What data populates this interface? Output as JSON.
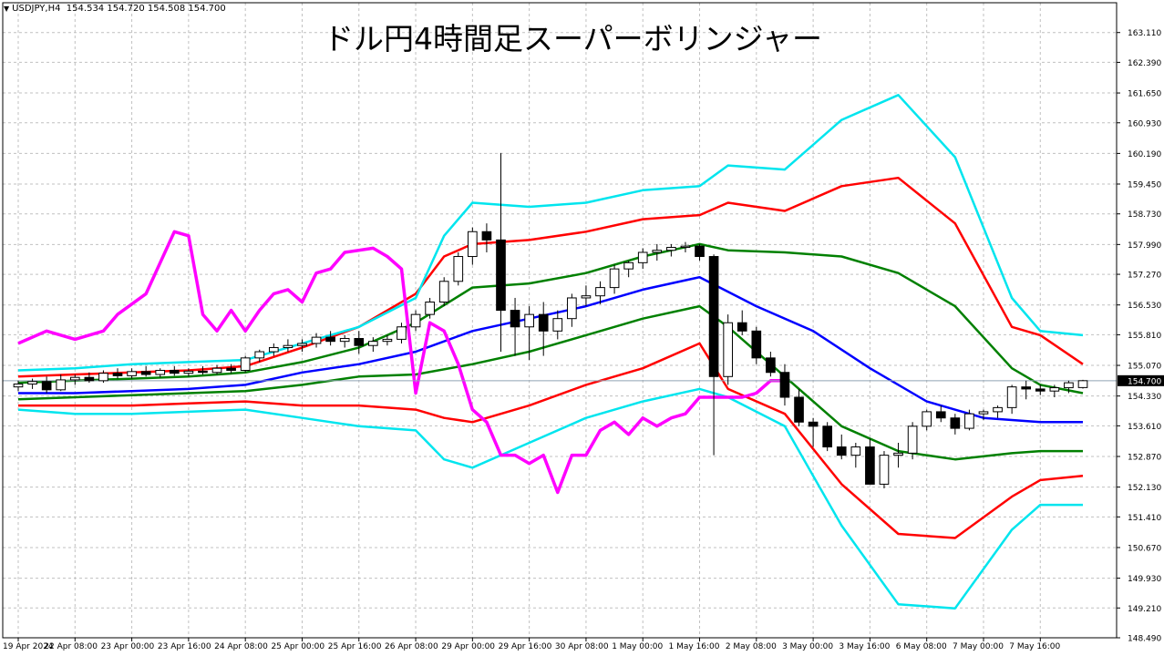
{
  "header": {
    "symbol_line": "USDJPY,H4  154.534 154.720 154.508 154.700",
    "title": "ドル円4時間足スーパーボリンジャー"
  },
  "colors": {
    "background": "#ffffff",
    "grid": "#c0c0c0",
    "frame": "#000000",
    "bull_candle": "#ffffff",
    "bear_candle": "#000000",
    "middle_band": "#0000ff",
    "sigma1": "#008000",
    "sigma2": "#ff0000",
    "sigma3": "#00e5ee",
    "chikou_span": "#ff00ff",
    "price_line": "#8fa3b3"
  },
  "chart_data": {
    "type": "candlestick",
    "title": "ドル円4時間足スーパーボリンジャー",
    "symbol": "USDJPY",
    "timeframe": "H4",
    "ohlc_last": {
      "open": 154.534,
      "high": 154.72,
      "low": 154.508,
      "close": 154.7
    },
    "current_price": 154.7,
    "ylim": [
      148.49,
      163.83
    ],
    "y_ticks": [
      "163.110",
      "162.390",
      "161.650",
      "160.930",
      "160.190",
      "159.450",
      "158.730",
      "157.990",
      "157.270",
      "156.530",
      "155.810",
      "155.070",
      "154.330",
      "153.610",
      "152.870",
      "152.130",
      "151.410",
      "150.670",
      "149.930",
      "149.210",
      "148.490"
    ],
    "x_ticks": [
      "19 Apr 2024",
      "22 Apr 08:00",
      "23 Apr 00:00",
      "23 Apr 16:00",
      "24 Apr 08:00",
      "25 Apr 00:00",
      "25 Apr 16:00",
      "26 Apr 08:00",
      "29 Apr 00:00",
      "29 Apr 16:00",
      "30 Apr 08:00",
      "1 May 00:00",
      "1 May 16:00",
      "2 May 08:00",
      "3 May 00:00",
      "3 May 16:00",
      "6 May 08:00",
      "7 May 00:00",
      "7 May 16:00"
    ],
    "x_tick_bar_index": [
      0,
      4,
      8,
      12,
      16,
      20,
      24,
      28,
      32,
      36,
      40,
      44,
      48,
      52,
      56,
      60,
      64,
      68,
      72
    ],
    "grid": true,
    "candles": [
      [
        154.55,
        154.7,
        154.45,
        154.62
      ],
      [
        154.62,
        154.75,
        154.5,
        154.68
      ],
      [
        154.68,
        154.8,
        154.4,
        154.48
      ],
      [
        154.48,
        154.85,
        154.45,
        154.72
      ],
      [
        154.72,
        154.85,
        154.6,
        154.78
      ],
      [
        154.78,
        154.9,
        154.65,
        154.7
      ],
      [
        154.7,
        154.95,
        154.65,
        154.88
      ],
      [
        154.88,
        155.0,
        154.75,
        154.82
      ],
      [
        154.82,
        155.0,
        154.75,
        154.92
      ],
      [
        154.92,
        155.05,
        154.8,
        154.85
      ],
      [
        154.85,
        155.0,
        154.78,
        154.95
      ],
      [
        154.95,
        155.05,
        154.82,
        154.88
      ],
      [
        154.88,
        155.0,
        154.8,
        154.93
      ],
      [
        154.93,
        155.05,
        154.85,
        154.9
      ],
      [
        154.9,
        155.08,
        154.85,
        155.0
      ],
      [
        155.0,
        155.1,
        154.88,
        154.95
      ],
      [
        154.95,
        155.3,
        154.9,
        155.25
      ],
      [
        155.25,
        155.45,
        155.15,
        155.4
      ],
      [
        155.4,
        155.6,
        155.3,
        155.5
      ],
      [
        155.5,
        155.7,
        155.4,
        155.55
      ],
      [
        155.55,
        155.7,
        155.4,
        155.6
      ],
      [
        155.6,
        155.85,
        155.5,
        155.75
      ],
      [
        155.75,
        155.9,
        155.55,
        155.65
      ],
      [
        155.65,
        155.8,
        155.5,
        155.72
      ],
      [
        155.72,
        155.9,
        155.35,
        155.55
      ],
      [
        155.55,
        155.75,
        155.4,
        155.65
      ],
      [
        155.65,
        155.8,
        155.55,
        155.7
      ],
      [
        155.7,
        156.1,
        155.6,
        156.0
      ],
      [
        156.0,
        156.4,
        155.9,
        156.3
      ],
      [
        156.3,
        156.7,
        156.2,
        156.6
      ],
      [
        156.6,
        157.2,
        156.5,
        157.1
      ],
      [
        157.1,
        157.8,
        157.0,
        157.7
      ],
      [
        157.7,
        158.4,
        157.5,
        158.3
      ],
      [
        158.3,
        158.5,
        157.8,
        158.1
      ],
      [
        158.1,
        160.2,
        155.4,
        156.4
      ],
      [
        156.4,
        156.7,
        155.3,
        156.0
      ],
      [
        156.0,
        156.5,
        155.2,
        156.3
      ],
      [
        156.3,
        156.6,
        155.3,
        155.9
      ],
      [
        155.9,
        156.4,
        155.7,
        156.2
      ],
      [
        156.2,
        156.8,
        156.0,
        156.7
      ],
      [
        156.7,
        157.0,
        156.5,
        156.75
      ],
      [
        156.75,
        157.1,
        156.55,
        156.95
      ],
      [
        156.95,
        157.5,
        156.8,
        157.4
      ],
      [
        157.4,
        157.6,
        157.2,
        157.55
      ],
      [
        157.55,
        157.9,
        157.4,
        157.8
      ],
      [
        157.8,
        158.0,
        157.6,
        157.85
      ],
      [
        157.85,
        158.0,
        157.7,
        157.92
      ],
      [
        157.92,
        158.05,
        157.8,
        157.95
      ],
      [
        157.95,
        158.0,
        157.6,
        157.7
      ],
      [
        157.7,
        157.75,
        152.9,
        154.8
      ],
      [
        154.8,
        156.3,
        154.6,
        156.1
      ],
      [
        156.1,
        156.4,
        155.8,
        155.9
      ],
      [
        155.9,
        156.0,
        155.1,
        155.25
      ],
      [
        155.25,
        155.4,
        154.8,
        154.9
      ],
      [
        154.9,
        155.1,
        154.1,
        154.3
      ],
      [
        154.3,
        154.5,
        153.6,
        153.7
      ],
      [
        153.7,
        153.8,
        153.1,
        153.6
      ],
      [
        153.6,
        153.7,
        153.0,
        153.1
      ],
      [
        153.1,
        153.4,
        152.8,
        152.9
      ],
      [
        152.9,
        153.2,
        152.6,
        153.1
      ],
      [
        153.1,
        153.3,
        152.2,
        152.2
      ],
      [
        152.2,
        153.0,
        152.1,
        152.9
      ],
      [
        152.9,
        153.2,
        152.6,
        152.95
      ],
      [
        152.95,
        153.7,
        152.8,
        153.6
      ],
      [
        153.6,
        154.0,
        153.5,
        153.95
      ],
      [
        153.95,
        154.1,
        153.7,
        153.8
      ],
      [
        153.8,
        153.9,
        153.4,
        153.55
      ],
      [
        153.55,
        154.0,
        153.5,
        153.9
      ],
      [
        153.9,
        154.0,
        153.75,
        153.95
      ],
      [
        153.95,
        154.1,
        153.8,
        154.05
      ],
      [
        154.05,
        154.6,
        153.9,
        154.55
      ],
      [
        154.55,
        154.7,
        154.25,
        154.5
      ],
      [
        154.5,
        154.6,
        154.35,
        154.45
      ],
      [
        154.45,
        154.6,
        154.3,
        154.53
      ],
      [
        154.53,
        154.7,
        154.4,
        154.65
      ],
      [
        154.534,
        154.72,
        154.508,
        154.7
      ]
    ],
    "series": [
      {
        "name": "",
        "role": "middle",
        "x": [
          0,
          4,
          8,
          12,
          16,
          20,
          24,
          28,
          32,
          36,
          40,
          44,
          48,
          52,
          56,
          60,
          64,
          68,
          72,
          75
        ],
        "values": [
          154.4,
          154.4,
          154.45,
          154.5,
          154.6,
          154.9,
          155.1,
          155.4,
          155.9,
          156.2,
          156.5,
          156.9,
          157.2,
          156.5,
          155.9,
          155.0,
          154.2,
          153.8,
          153.7,
          153.7
        ]
      },
      {
        "name": "",
        "role": "plus1",
        "x": [
          0,
          4,
          8,
          12,
          16,
          20,
          24,
          28,
          32,
          36,
          40,
          44,
          48,
          50,
          54,
          58,
          62,
          66,
          70,
          72,
          75
        ],
        "values": [
          154.65,
          154.7,
          154.75,
          154.8,
          154.9,
          155.15,
          155.5,
          156.1,
          156.95,
          157.05,
          157.3,
          157.7,
          158.0,
          157.85,
          157.8,
          157.7,
          157.3,
          156.5,
          155.0,
          154.6,
          154.4
        ]
      },
      {
        "name": "",
        "role": "minus1",
        "x": [
          0,
          4,
          8,
          12,
          16,
          20,
          24,
          28,
          32,
          36,
          40,
          44,
          48,
          50,
          54,
          58,
          62,
          66,
          70,
          72,
          75
        ],
        "values": [
          154.25,
          154.3,
          154.35,
          154.4,
          154.45,
          154.6,
          154.8,
          154.85,
          155.1,
          155.4,
          155.8,
          156.2,
          156.5,
          156.0,
          154.8,
          153.6,
          153.0,
          152.8,
          152.95,
          153.0,
          153.0
        ]
      },
      {
        "name": "",
        "role": "plus2",
        "x": [
          0,
          4,
          8,
          12,
          16,
          20,
          24,
          28,
          30,
          32,
          36,
          40,
          44,
          48,
          50,
          54,
          58,
          62,
          66,
          70,
          72,
          75
        ],
        "values": [
          154.8,
          154.85,
          154.9,
          154.95,
          155.05,
          155.5,
          156.0,
          156.8,
          157.7,
          158.0,
          158.1,
          158.3,
          158.6,
          158.7,
          159.0,
          158.8,
          159.4,
          159.6,
          158.5,
          156.0,
          155.8,
          155.1
        ]
      },
      {
        "name": "",
        "role": "minus2",
        "x": [
          0,
          4,
          8,
          12,
          16,
          20,
          24,
          28,
          30,
          32,
          36,
          40,
          44,
          48,
          50,
          54,
          58,
          62,
          66,
          70,
          72,
          75
        ],
        "values": [
          154.1,
          154.1,
          154.1,
          154.15,
          154.2,
          154.1,
          154.1,
          154.0,
          153.8,
          153.7,
          154.1,
          154.6,
          155.0,
          155.6,
          154.5,
          153.9,
          152.2,
          151.0,
          150.9,
          151.9,
          152.3,
          152.4
        ]
      },
      {
        "name": "",
        "role": "plus3",
        "x": [
          0,
          4,
          8,
          12,
          16,
          20,
          24,
          28,
          30,
          32,
          36,
          40,
          44,
          48,
          50,
          54,
          58,
          62,
          66,
          70,
          72,
          75
        ],
        "values": [
          154.95,
          155.0,
          155.1,
          155.15,
          155.2,
          155.6,
          156.0,
          156.7,
          158.2,
          159.0,
          158.9,
          159.0,
          159.3,
          159.4,
          159.9,
          159.8,
          161.0,
          161.6,
          160.1,
          156.7,
          155.9,
          155.8
        ]
      },
      {
        "name": "",
        "role": "minus3",
        "x": [
          0,
          4,
          8,
          12,
          16,
          20,
          24,
          28,
          30,
          32,
          36,
          40,
          44,
          48,
          50,
          54,
          58,
          62,
          66,
          70,
          72,
          75
        ],
        "values": [
          154.0,
          153.9,
          153.9,
          153.95,
          154.0,
          153.8,
          153.6,
          153.5,
          152.8,
          152.6,
          153.2,
          153.8,
          154.2,
          154.5,
          154.3,
          153.6,
          151.2,
          149.3,
          149.2,
          151.1,
          151.7,
          151.7
        ]
      },
      {
        "name": "",
        "role": "chikou",
        "x": [
          0,
          2,
          4,
          6,
          7,
          9,
          11,
          12,
          13,
          14,
          15,
          16,
          17,
          18,
          19,
          20,
          21,
          22,
          23,
          25,
          26,
          27,
          28,
          29,
          30,
          31,
          32,
          33,
          34,
          35,
          36,
          37,
          38,
          39,
          40,
          41,
          42,
          43,
          44,
          45,
          46,
          47,
          48,
          49,
          50,
          51,
          52,
          53,
          54
        ],
        "values": [
          155.6,
          155.9,
          155.7,
          155.9,
          156.3,
          156.8,
          158.3,
          158.2,
          156.3,
          155.9,
          156.4,
          155.9,
          156.4,
          156.8,
          156.9,
          156.6,
          157.3,
          157.4,
          157.8,
          157.9,
          157.7,
          157.4,
          154.4,
          156.1,
          155.9,
          155.1,
          154.0,
          153.7,
          152.9,
          152.9,
          152.7,
          152.9,
          152.0,
          152.9,
          152.9,
          153.5,
          153.7,
          153.4,
          153.8,
          153.6,
          153.8,
          153.9,
          154.3,
          154.3,
          154.3,
          154.3,
          154.4,
          154.7,
          154.7
        ]
      }
    ]
  }
}
